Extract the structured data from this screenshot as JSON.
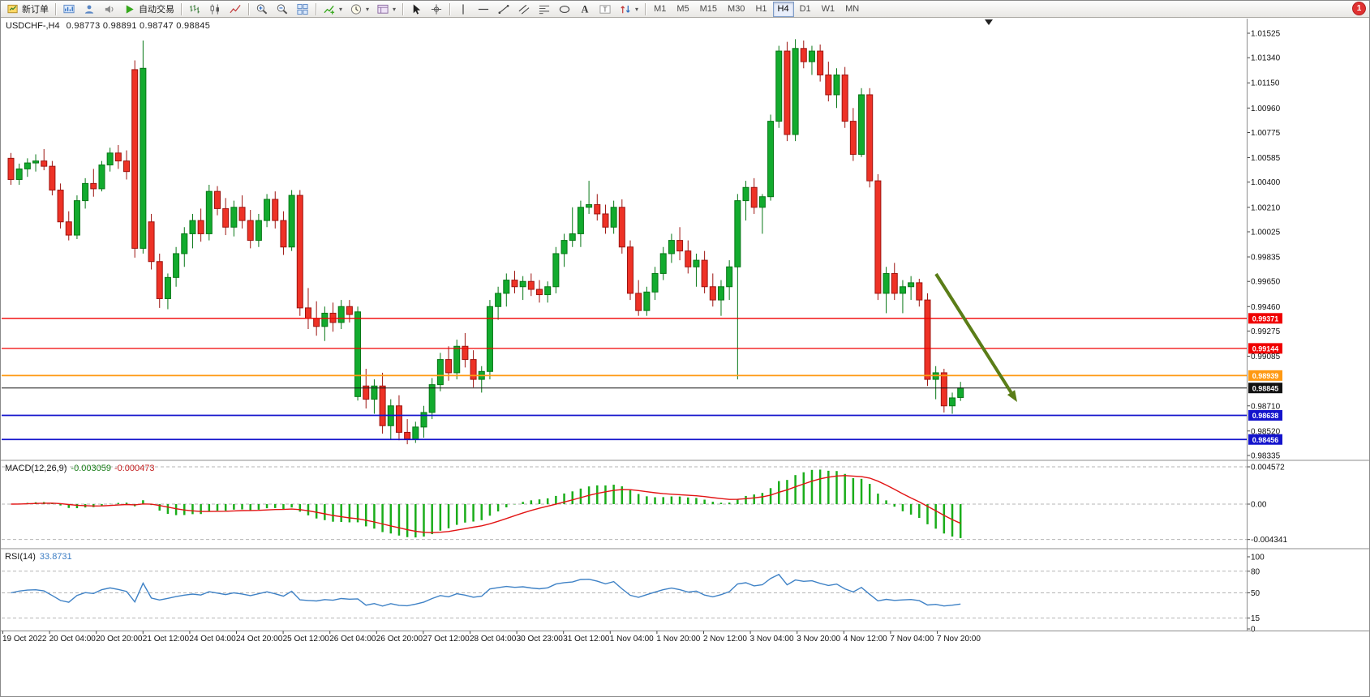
{
  "app": {
    "notification_count": "1"
  },
  "toolbar": {
    "items": [
      {
        "type": "button",
        "name": "new-order-button",
        "icon": "new-order-icon",
        "label": "新订单"
      },
      {
        "type": "sep"
      },
      {
        "type": "button",
        "name": "charts-profile-button",
        "icon": "profiles-icon"
      },
      {
        "type": "button",
        "name": "market-watch-button",
        "icon": "market-watch-icon"
      },
      {
        "type": "button",
        "name": "sounds-button",
        "icon": "sounds-icon"
      },
      {
        "type": "button",
        "name": "autotrading-button",
        "icon": "autotrading-icon",
        "label": "自动交易"
      },
      {
        "type": "sep"
      },
      {
        "type": "button",
        "name": "bar-chart-button",
        "icon": "bar-chart-icon"
      },
      {
        "type": "button",
        "name": "candlestick-chart-button",
        "icon": "candlestick-chart-icon"
      },
      {
        "type": "button",
        "name": "line-chart-button",
        "icon": "line-chart-icon"
      },
      {
        "type": "sep"
      },
      {
        "type": "button",
        "name": "zoom-in-button",
        "icon": "zoom-in-icon"
      },
      {
        "type": "button",
        "name": "zoom-out-button",
        "icon": "zoom-out-icon"
      },
      {
        "type": "button",
        "name": "tile-windows-button",
        "icon": "tile-windows-icon"
      },
      {
        "type": "sep"
      },
      {
        "type": "button",
        "name": "indicators-button",
        "icon": "indicators-icon",
        "caret": true
      },
      {
        "type": "button",
        "name": "periods-button",
        "icon": "periods-icon",
        "caret": true
      },
      {
        "type": "button",
        "name": "templates-button",
        "icon": "templates-icon",
        "caret": true
      },
      {
        "type": "sep"
      },
      {
        "type": "button",
        "name": "cursor-button",
        "icon": "cursor-icon"
      },
      {
        "type": "button",
        "name": "crosshair-button",
        "icon": "crosshair-icon"
      },
      {
        "type": "sep"
      },
      {
        "type": "button",
        "name": "vertical-line-button",
        "icon": "vertical-line-icon"
      },
      {
        "type": "button",
        "name": "horizontal-line-button",
        "icon": "horizontal-line-icon"
      },
      {
        "type": "button",
        "name": "trendline-button",
        "icon": "trendline-icon"
      },
      {
        "type": "button",
        "name": "channel-button",
        "icon": "channel-icon"
      },
      {
        "type": "button",
        "name": "fibonacci-button",
        "icon": "fibonacci-icon"
      },
      {
        "type": "button",
        "name": "shapes-button",
        "icon": "shapes-icon"
      },
      {
        "type": "button",
        "name": "text-button",
        "icon": "text-icon"
      },
      {
        "type": "button",
        "name": "text-label-button",
        "icon": "text-label-icon"
      },
      {
        "type": "button",
        "name": "arrows-button",
        "icon": "arrow-styles-icon",
        "caret": true
      },
      {
        "type": "sep"
      },
      {
        "type": "tf",
        "label": "M1"
      },
      {
        "type": "tf",
        "label": "M5"
      },
      {
        "type": "tf",
        "label": "M15"
      },
      {
        "type": "tf",
        "label": "M30"
      },
      {
        "type": "tf",
        "label": "H1"
      },
      {
        "type": "tf",
        "label": "H4",
        "active": true
      },
      {
        "type": "tf",
        "label": "D1"
      },
      {
        "type": "tf",
        "label": "W1"
      },
      {
        "type": "tf",
        "label": "MN"
      }
    ]
  },
  "chart": {
    "title": {
      "symbol": "USDCHF-,H4",
      "ohlc": "0.98773 0.98891 0.98747 0.98845"
    }
  },
  "chart_data": {
    "type": "candlestick",
    "symbol": "USDCHF-",
    "timeframe": "H4",
    "current_bar": {
      "open": 0.98773,
      "high": 0.98891,
      "low": 0.98747,
      "close": 0.98845
    },
    "colors": {
      "bull": "#12ab2e",
      "bull_border": "#077716",
      "bear": "#ee3226",
      "bear_border": "#9d1410",
      "macd_bar": "#1aad1a",
      "macd_signal": "#e21414",
      "rsi_line": "#3f82c6",
      "background": "#ffffff"
    },
    "price_axis": {
      "labels": [
        "1.01525",
        "1.01340",
        "1.01150",
        "1.00960",
        "1.00775",
        "1.00585",
        "1.00400",
        "1.00210",
        "1.00025",
        "0.99835",
        "0.99650",
        "0.99460",
        "0.99275",
        "0.99085",
        "0.98710",
        "0.98520",
        "0.98335"
      ]
    },
    "hlines": [
      {
        "price": 0.99371,
        "label": "0.99371",
        "color": "#f00000",
        "width": 1.3
      },
      {
        "price": 0.99144,
        "label": "0.99144",
        "color": "#f00000",
        "width": 1.3
      },
      {
        "price": 0.98939,
        "label": "0.98939",
        "color": "#ff9912",
        "width": 1.8
      },
      {
        "price": 0.98845,
        "label": "0.98845",
        "color": "#111111",
        "width": 1
      },
      {
        "price": 0.98638,
        "label": "0.98638",
        "color": "#1414cc",
        "width": 1.8
      },
      {
        "price": 0.98456,
        "label": "0.98456",
        "color": "#1414cc",
        "width": 1.8
      }
    ],
    "time_labels": [
      "19 Oct 2022",
      "20 Oct 04:00",
      "20 Oct 20:00",
      "21 Oct 12:00",
      "24 Oct 04:00",
      "24 Oct 20:00",
      "25 Oct 12:00",
      "26 Oct 04:00",
      "26 Oct 20:00",
      "27 Oct 12:00",
      "28 Oct 04:00",
      "30 Oct 23:00",
      "31 Oct 12:00",
      "1 Nov 04:00",
      "1 Nov 20:00",
      "2 Nov 12:00",
      "3 Nov 04:00",
      "3 Nov 20:00",
      "4 Nov 12:00",
      "7 Nov 04:00",
      "7 Nov 20:00"
    ],
    "indicators": {
      "macd": {
        "label": "MACD(12,26,9)",
        "main_value": "-0.003059",
        "signal_value": "-0.000473",
        "axis_labels": [
          "0.004572",
          "0.00",
          "-0.004341"
        ]
      },
      "rsi": {
        "label": "RSI(14)",
        "value": "33.8731",
        "axis_labels": [
          "100",
          "80",
          "50",
          "15",
          "0"
        ],
        "levels": [
          80,
          50,
          15
        ]
      }
    },
    "annotation_arrow": {
      "from": [
        1153,
        337
      ],
      "to": [
        1253,
        495
      ],
      "color": "#5a7d17",
      "width": 4
    },
    "candles": [
      [
        1.0058,
        1.0062,
        1.0038,
        1.0042
      ],
      [
        1.0042,
        1.0054,
        1.0038,
        1.005
      ],
      [
        1.005,
        1.0058,
        1.0044,
        1.00545
      ],
      [
        1.00545,
        1.0061,
        1.0048,
        1.0056
      ],
      [
        1.0056,
        1.0065,
        1.0049,
        1.0052
      ],
      [
        1.0052,
        1.0056,
        1.003,
        1.0034
      ],
      [
        1.0034,
        1.0039,
        1.0005,
        1.001
      ],
      [
        1.001,
        1.0018,
        0.9996,
        1.0
      ],
      [
        1.0,
        1.003,
        0.9997,
        1.0026
      ],
      [
        1.0026,
        1.0043,
        1.002,
        1.0039
      ],
      [
        1.0039,
        1.005,
        1.0029,
        1.0035
      ],
      [
        1.0035,
        1.0056,
        1.0033,
        1.0053
      ],
      [
        1.0053,
        1.0066,
        1.0048,
        1.0062
      ],
      [
        1.0062,
        1.0068,
        1.005,
        1.0056
      ],
      [
        1.0056,
        1.0064,
        1.0042,
        1.0048
      ],
      [
        1.0125,
        1.0132,
        0.9983,
        0.999
      ],
      [
        0.999,
        1.0147,
        0.9986,
        1.0126
      ],
      [
        1.001,
        1.0016,
        0.9974,
        0.998
      ],
      [
        0.998,
        0.9986,
        0.9945,
        0.9952
      ],
      [
        0.9952,
        0.9971,
        0.9944,
        0.9968
      ],
      [
        0.9968,
        0.9991,
        0.9961,
        0.9986
      ],
      [
        0.9986,
        1.0006,
        0.9976,
        1.0001
      ],
      [
        1.0001,
        1.0016,
        0.999,
        1.0011
      ],
      [
        1.0011,
        1.002,
        0.9995,
        1.0001
      ],
      [
        1.0001,
        1.0038,
        0.9996,
        1.0033
      ],
      [
        1.0033,
        1.0037,
        1.0015,
        1.002
      ],
      [
        1.002,
        1.0028,
        1.0,
        1.0006
      ],
      [
        1.0006,
        1.0026,
        0.9999,
        1.0021
      ],
      [
        1.0021,
        1.003,
        1.0005,
        1.0011
      ],
      [
        1.0011,
        1.0019,
        0.999,
        0.9996
      ],
      [
        0.9996,
        1.0016,
        0.9991,
        1.0011
      ],
      [
        1.0011,
        1.0031,
        1.0006,
        1.0027
      ],
      [
        1.0027,
        1.0033,
        1.0005,
        1.0011
      ],
      [
        1.0011,
        1.0018,
        0.9985,
        0.9991
      ],
      [
        0.9991,
        1.0034,
        0.9988,
        1.003
      ],
      [
        1.003,
        1.0034,
        0.9939,
        0.9945
      ],
      [
        0.9945,
        0.996,
        0.9929,
        0.9937
      ],
      [
        0.9937,
        0.995,
        0.9924,
        0.9931
      ],
      [
        0.9931,
        0.9946,
        0.992,
        0.9941
      ],
      [
        0.9941,
        0.9949,
        0.9927,
        0.9934
      ],
      [
        0.9934,
        0.9951,
        0.9929,
        0.9946
      ],
      [
        0.9946,
        0.9951,
        0.9934,
        0.994
      ],
      [
        0.9878,
        0.9946,
        0.9875,
        0.9942
      ],
      [
        0.9886,
        0.9899,
        0.9869,
        0.9876
      ],
      [
        0.9876,
        0.9891,
        0.9865,
        0.9886
      ],
      [
        0.9886,
        0.9896,
        0.985,
        0.9856
      ],
      [
        0.9856,
        0.9876,
        0.9846,
        0.9871
      ],
      [
        0.9871,
        0.9879,
        0.9845,
        0.9851
      ],
      [
        0.9851,
        0.9861,
        0.9842,
        0.9846
      ],
      [
        0.9846,
        0.9859,
        0.9843,
        0.9855
      ],
      [
        0.9855,
        0.9871,
        0.9847,
        0.9866
      ],
      [
        0.9866,
        0.9892,
        0.9861,
        0.9887
      ],
      [
        0.9887,
        0.9911,
        0.9882,
        0.9906
      ],
      [
        0.9906,
        0.9916,
        0.989,
        0.9896
      ],
      [
        0.9896,
        0.9921,
        0.9891,
        0.9916
      ],
      [
        0.9916,
        0.9926,
        0.99,
        0.9906
      ],
      [
        0.9906,
        0.9913,
        0.9885,
        0.9891
      ],
      [
        0.9891,
        0.9901,
        0.9881,
        0.9897
      ],
      [
        0.9897,
        0.9951,
        0.9891,
        0.9946
      ],
      [
        0.9946,
        0.9961,
        0.9936,
        0.9956
      ],
      [
        0.9956,
        0.9971,
        0.9946,
        0.9966
      ],
      [
        0.9966,
        0.9973,
        0.9956,
        0.9961
      ],
      [
        0.9961,
        0.9969,
        0.9951,
        0.9965
      ],
      [
        0.9965,
        0.9971,
        0.9954,
        0.9959
      ],
      [
        0.9959,
        0.9966,
        0.9949,
        0.9955
      ],
      [
        0.9955,
        0.9965,
        0.9949,
        0.9961
      ],
      [
        0.9961,
        0.9991,
        0.9956,
        0.9986
      ],
      [
        0.9986,
        1.0001,
        0.9976,
        0.9996
      ],
      [
        0.9996,
        1.0021,
        0.9991,
        1.0001
      ],
      [
        1.0001,
        1.0026,
        0.9991,
        1.0021
      ],
      [
        1.0021,
        1.0041,
        1.0016,
        1.0023
      ],
      [
        1.0023,
        1.0031,
        1.0011,
        1.0016
      ],
      [
        1.0016,
        1.0023,
        1.0001,
        1.0006
      ],
      [
        1.0006,
        1.0026,
        1.0001,
        1.0021
      ],
      [
        1.0021,
        1.0027,
        0.9986,
        0.9991
      ],
      [
        0.9991,
        0.9996,
        0.9951,
        0.9956
      ],
      [
        0.9956,
        0.9966,
        0.9939,
        0.9943
      ],
      [
        0.9943,
        0.9961,
        0.9939,
        0.9957
      ],
      [
        0.9957,
        0.9976,
        0.9951,
        0.9971
      ],
      [
        0.9971,
        0.9991,
        0.9966,
        0.9986
      ],
      [
        0.9986,
        1.0001,
        0.9979,
        0.9996
      ],
      [
        0.9996,
        1.0006,
        0.9981,
        0.9988
      ],
      [
        0.9988,
        0.9996,
        0.9971,
        0.9976
      ],
      [
        0.9976,
        0.9986,
        0.9961,
        0.9981
      ],
      [
        0.9981,
        0.9988,
        0.9956,
        0.9961
      ],
      [
        0.9961,
        0.9971,
        0.9946,
        0.9951
      ],
      [
        0.9951,
        0.9966,
        0.9939,
        0.9961
      ],
      [
        0.9961,
        0.9981,
        0.9951,
        0.9976
      ],
      [
        0.9976,
        1.0031,
        0.9891,
        1.0026
      ],
      [
        1.0026,
        1.0041,
        1.0011,
        1.0036
      ],
      [
        1.0036,
        1.0043,
        1.0016,
        1.0021
      ],
      [
        1.0021,
        1.0031,
        1.0001,
        1.0029
      ],
      [
        1.0029,
        1.0091,
        1.0026,
        1.0086
      ],
      [
        1.0086,
        1.0143,
        1.0081,
        1.0139
      ],
      [
        1.0139,
        1.0146,
        1.0071,
        1.0076
      ],
      [
        1.0076,
        1.0148,
        1.0071,
        1.0141
      ],
      [
        1.0141,
        1.0147,
        1.0126,
        1.0131
      ],
      [
        1.0131,
        1.0143,
        1.0121,
        1.0139
      ],
      [
        1.0139,
        1.0144,
        1.0116,
        1.0121
      ],
      [
        1.0121,
        1.0131,
        1.0101,
        1.0106
      ],
      [
        1.0106,
        1.0126,
        1.0096,
        1.0121
      ],
      [
        1.0121,
        1.0127,
        1.0081,
        1.0086
      ],
      [
        1.0086,
        1.0096,
        1.0056,
        1.0061
      ],
      [
        1.0061,
        1.0111,
        1.0059,
        1.0106
      ],
      [
        1.0106,
        1.0111,
        1.0036,
        1.0041
      ],
      [
        1.0041,
        1.0046,
        0.9951,
        0.9956
      ],
      [
        0.9956,
        0.9976,
        0.9941,
        0.9971
      ],
      [
        0.9971,
        0.9979,
        0.9951,
        0.9956
      ],
      [
        0.9956,
        0.9966,
        0.9941,
        0.9961
      ],
      [
        0.9961,
        0.9969,
        0.9951,
        0.9964
      ],
      [
        0.9964,
        0.9967,
        0.9946,
        0.9951
      ],
      [
        0.9951,
        0.9956,
        0.9886,
        0.9891
      ],
      [
        0.9891,
        0.9901,
        0.9876,
        0.9896
      ],
      [
        0.9896,
        0.9899,
        0.9866,
        0.9871
      ],
      [
        0.9871,
        0.9881,
        0.9865,
        0.9877
      ],
      [
        0.98773,
        0.98891,
        0.98747,
        0.98845
      ]
    ]
  }
}
